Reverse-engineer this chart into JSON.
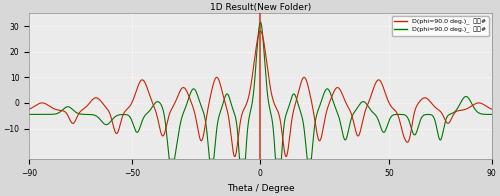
{
  "title": "1D Result(New Folder)",
  "xlabel": "Theta / Degree",
  "xlim": [
    -90,
    90
  ],
  "ylim": [
    -22,
    35
  ],
  "xticks": [
    -90,
    -50,
    0,
    50,
    90
  ],
  "yticks": [
    -10,
    0,
    10,
    20,
    30
  ],
  "bg_color": "#d8d8d8",
  "plot_bg_color": "#ebebeb",
  "grid_color": "#ffffff",
  "legend_red": "D(phi=90.0 deg.)_  主办#",
  "legend_green": "D(phi=90.0 deg.)_  副办#",
  "line_red": "#cc2200",
  "line_green": "#007700",
  "vline_color": "#cc2200"
}
